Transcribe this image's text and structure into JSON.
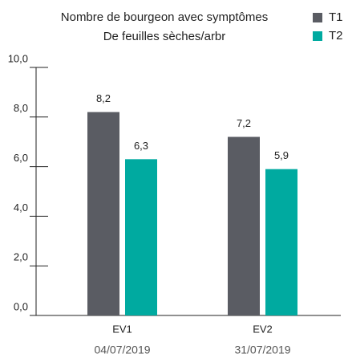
{
  "chart_data": {
    "type": "bar",
    "title": [
      "Nombre de bourgeon avec symptômes",
      "De feuilles sèches/arbr"
    ],
    "categories": [
      "EV1",
      "EV2"
    ],
    "category_dates": [
      "04/07/2019",
      "31/07/2019"
    ],
    "series": [
      {
        "name": "T1",
        "color": "#5a5c63",
        "values": [
          8.2,
          7.2
        ],
        "value_labels": [
          "8,2",
          "7,2"
        ]
      },
      {
        "name": "T2",
        "color": "#00aaa0",
        "values": [
          6.3,
          5.9
        ],
        "value_labels": [
          "6,3",
          "5,9"
        ]
      }
    ],
    "ylim": [
      0,
      10
    ],
    "yticks": [
      {
        "value": 0,
        "label": "0,0"
      },
      {
        "value": 2,
        "label": "2,0"
      },
      {
        "value": 4,
        "label": "4,0"
      },
      {
        "value": 6,
        "label": "6,0"
      },
      {
        "value": 8,
        "label": "8,0"
      },
      {
        "value": 10,
        "label": "10,0"
      }
    ],
    "legend": "top-right"
  }
}
